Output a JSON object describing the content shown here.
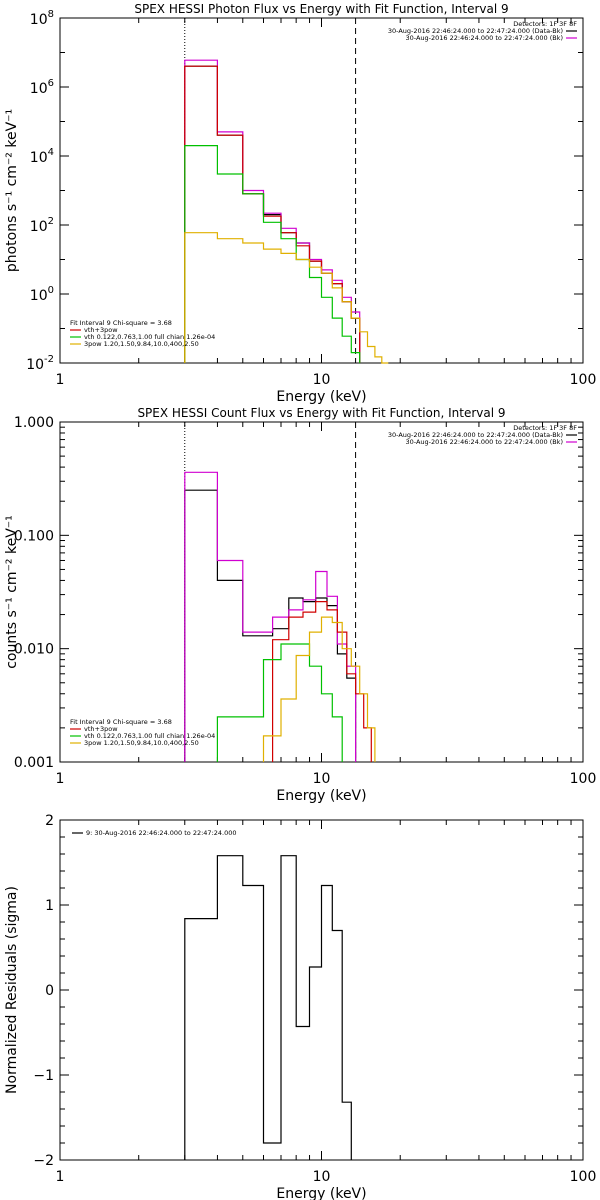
{
  "chart_data": [
    {
      "type": "line",
      "title": "SPEX HESSI Photon Flux vs Energy with Fit Function, Interval 9",
      "xlabel": "Energy (keV)",
      "ylabel": "photons s⁻¹ cm⁻² keV⁻¹",
      "xscale": "log",
      "yscale": "log",
      "xlim": [
        1,
        100
      ],
      "ylim": [
        0.01,
        100000000
      ],
      "x_ticks": [
        {
          "value": 1,
          "label": "1"
        },
        {
          "value": 10,
          "label": "10"
        },
        {
          "value": 100,
          "label": "100"
        }
      ],
      "y_ticks": [
        {
          "value": 0.01,
          "base": "10",
          "exp": "-2"
        },
        {
          "value": 1,
          "base": "10",
          "exp": "0"
        },
        {
          "value": 100,
          "base": "10",
          "exp": "2"
        },
        {
          "value": 10000,
          "base": "10",
          "exp": "4"
        },
        {
          "value": 1000000,
          "base": "10",
          "exp": "6"
        },
        {
          "value": 100000000,
          "base": "10",
          "exp": "8"
        }
      ],
      "vlines": [
        {
          "x": 3.0,
          "style": "dotted"
        },
        {
          "x": 13.5,
          "style": "dashed"
        }
      ],
      "legend_top_right": {
        "header": "Detectors: 1F 3F 8F",
        "entries": [
          {
            "text": "30-Aug-2016 22:46:24.000 to 22:47:24.000 (Data-Bk)",
            "color": "#000000"
          },
          {
            "text": "30-Aug-2016 22:46:24.000 to 22:47:24.000 (Bk)",
            "color": "#d000d0"
          }
        ]
      },
      "legend_bottom_left": {
        "header": "Fit Interval 9   Chi-square = 3.68",
        "entries": [
          {
            "text": "vth+3pow",
            "color": "#d00000"
          },
          {
            "text": "vth 0.122,0.763,1.00  full chian 1.26e-04",
            "color": "#00c000"
          },
          {
            "text": "3pow 1.20,1.50,9.84,10.0,400,2.50",
            "color": "#e0b000"
          }
        ]
      },
      "edges": [
        3.0,
        3.5,
        4.0,
        4.5,
        5.0,
        5.5,
        6.0,
        6.5,
        7.0,
        7.5,
        8.0,
        8.5,
        9.0,
        9.5,
        10.0,
        10.5,
        11.0,
        11.5,
        12.0,
        12.5,
        13.0,
        13.5,
        14.0,
        14.5,
        15.0,
        15.5,
        16.0,
        16.5,
        17.0,
        17.5,
        18.0
      ],
      "series": [
        {
          "name": "Data-Bk",
          "color": "#000000",
          "values": [
            4000000,
            4000000,
            40000,
            40000,
            800,
            800,
            200,
            200,
            60,
            60,
            30,
            30,
            9,
            9,
            4,
            4,
            2,
            2,
            0.6,
            0.6,
            0.2,
            0.2,
            null,
            null,
            null,
            null,
            null,
            null,
            null,
            null
          ]
        },
        {
          "name": "Bk",
          "color": "#d000d0",
          "values": [
            6000000,
            6000000,
            50000,
            50000,
            1000,
            1000,
            220,
            220,
            80,
            80,
            30,
            30,
            10,
            10,
            5,
            5,
            2.5,
            2.5,
            0.8,
            0.8,
            0.3,
            0.3,
            null,
            null,
            null,
            null,
            null,
            null,
            null,
            null
          ]
        },
        {
          "name": "vth+3pow",
          "color": "#d00000",
          "values": [
            4000000,
            4000000,
            40000,
            40000,
            800,
            800,
            180,
            180,
            60,
            60,
            25,
            25,
            9,
            9,
            4,
            4,
            2,
            2,
            0.6,
            0.6,
            0.2,
            0.2,
            null,
            null,
            null,
            null,
            null,
            null,
            null,
            null
          ]
        },
        {
          "name": "vth",
          "color": "#00c000",
          "values": [
            20000,
            20000,
            3000,
            3000,
            800,
            800,
            120,
            120,
            40,
            40,
            10,
            10,
            3,
            3,
            0.8,
            0.8,
            0.2,
            0.2,
            0.06,
            0.06,
            0.02,
            0.02,
            null,
            null,
            null,
            null,
            null,
            null,
            null,
            null
          ]
        },
        {
          "name": "3pow",
          "color": "#e0b000",
          "values": [
            60,
            60,
            40,
            40,
            30,
            30,
            20,
            20,
            15,
            15,
            10,
            10,
            6,
            6,
            4,
            4,
            1.5,
            1.5,
            0.6,
            0.6,
            0.2,
            0.2,
            0.08,
            0.08,
            0.03,
            0.03,
            0.015,
            0.015,
            0.01,
            0.01
          ]
        }
      ]
    },
    {
      "type": "line",
      "title": "SPEX HESSI Count Flux vs Energy with Fit Function, Interval 9",
      "xlabel": "Energy (keV)",
      "ylabel": "counts s⁻¹ cm⁻² keV⁻¹",
      "xscale": "log",
      "yscale": "log",
      "xlim": [
        1,
        100
      ],
      "ylim": [
        0.001,
        1
      ],
      "x_ticks": [
        {
          "value": 1,
          "label": "1"
        },
        {
          "value": 10,
          "label": "10"
        },
        {
          "value": 100,
          "label": "100"
        }
      ],
      "y_ticks": [
        {
          "value": 0.001,
          "label": "0.001"
        },
        {
          "value": 0.01,
          "label": "0.010"
        },
        {
          "value": 0.1,
          "label": "0.100"
        },
        {
          "value": 1,
          "label": "1.000"
        }
      ],
      "vlines": [
        {
          "x": 3.0,
          "style": "dotted"
        },
        {
          "x": 13.5,
          "style": "dashed"
        }
      ],
      "legend_top_right": {
        "header": "Detectors: 1F 3F 8F",
        "entries": [
          {
            "text": "30-Aug-2016 22:46:24.000 to 22:47:24.000 (Data-Bk)",
            "color": "#000000"
          },
          {
            "text": "30-Aug-2016 22:46:24.000 to 22:47:24.000 (Bk)",
            "color": "#d000d0"
          }
        ]
      },
      "legend_bottom_left": {
        "header": "Fit Interval 9   Chi-square = 3.68",
        "entries": [
          {
            "text": "vth+3pow",
            "color": "#d00000"
          },
          {
            "text": "vth 0.122,0.763,1.00  full chian 1.26e-04",
            "color": "#00c000"
          },
          {
            "text": "3pow 1.20,1.50,9.84,10.0,400,2.50",
            "color": "#e0b000"
          }
        ]
      },
      "edges": [
        3.0,
        4.0,
        5.0,
        6.0,
        6.5,
        7.0,
        7.5,
        8.0,
        8.5,
        9.0,
        9.5,
        10.0,
        10.5,
        11.0,
        11.5,
        12.0,
        12.5,
        13.0,
        13.5,
        14.0,
        14.5,
        15.0,
        15.5,
        16.0
      ],
      "series": [
        {
          "name": "Data-Bk",
          "color": "#000000",
          "values": [
            0.25,
            0.04,
            0.013,
            0.013,
            0.015,
            0.015,
            0.028,
            0.028,
            0.026,
            0.026,
            0.028,
            0.028,
            0.024,
            0.024,
            0.009,
            0.009,
            0.0055,
            0.0055,
            null,
            null,
            null,
            null,
            null
          ]
        },
        {
          "name": "Bk",
          "color": "#d000d0",
          "values": [
            0.36,
            0.06,
            0.014,
            0.014,
            0.019,
            0.019,
            0.022,
            0.022,
            0.027,
            0.027,
            0.048,
            0.048,
            0.029,
            0.029,
            0.011,
            0.011,
            0.007,
            0.007,
            null,
            null,
            null,
            null,
            null
          ]
        },
        {
          "name": "vth+3pow",
          "color": "#d00000",
          "values": [
            null,
            null,
            null,
            null,
            0.012,
            0.012,
            0.019,
            0.019,
            0.021,
            0.021,
            0.026,
            0.026,
            0.022,
            0.022,
            0.014,
            0.014,
            0.006,
            0.006,
            0.004,
            0.004,
            0.002,
            0.002,
            null
          ]
        },
        {
          "name": "vth",
          "color": "#00c000",
          "values": [
            null,
            0.0025,
            0.0025,
            0.008,
            0.008,
            0.011,
            0.011,
            0.011,
            0.011,
            0.007,
            0.007,
            0.004,
            0.004,
            0.0025,
            0.0025,
            null,
            null,
            null,
            null,
            null,
            null,
            null,
            null
          ]
        },
        {
          "name": "3pow",
          "color": "#e0b000",
          "values": [
            null,
            null,
            null,
            0.0017,
            0.0017,
            0.0036,
            0.0036,
            0.0087,
            0.0087,
            0.014,
            0.014,
            0.019,
            0.019,
            0.017,
            0.017,
            0.01,
            0.01,
            0.007,
            0.007,
            0.004,
            0.004,
            0.002,
            0.002
          ]
        }
      ]
    },
    {
      "type": "line",
      "title": "",
      "xlabel": "Energy (keV)",
      "ylabel": "Normalized Residuals (sigma)",
      "xscale": "log",
      "yscale": "linear",
      "xlim": [
        1,
        100
      ],
      "ylim": [
        -2,
        2
      ],
      "x_ticks": [
        {
          "value": 1,
          "label": "1"
        },
        {
          "value": 10,
          "label": "10"
        },
        {
          "value": 100,
          "label": "100"
        }
      ],
      "y_ticks": [
        {
          "value": -2,
          "label": "−2"
        },
        {
          "value": -1,
          "label": "−1"
        },
        {
          "value": 0,
          "label": "0"
        },
        {
          "value": 1,
          "label": "1"
        },
        {
          "value": 2,
          "label": "2"
        }
      ],
      "legend_top_left": {
        "entries": [
          {
            "text": "9: 30-Aug-2016 22:46:24.000 to 22:47:24.000",
            "color": "#000000"
          }
        ]
      },
      "edges": [
        3.0,
        3.5,
        4.0,
        4.5,
        5.0,
        5.5,
        6.0,
        6.5,
        7.0,
        7.5,
        8.0,
        8.5,
        9.0,
        9.5,
        10.0,
        10.5,
        11.0,
        11.5,
        12.0,
        12.5,
        13.0,
        13.5
      ],
      "series": [
        {
          "name": "residuals",
          "color": "#000000",
          "values": [
            0.84,
            0.84,
            1.58,
            1.58,
            1.23,
            1.23,
            -1.8,
            -1.8,
            1.58,
            1.58,
            -0.43,
            -0.43,
            0.27,
            0.27,
            1.23,
            1.23,
            0.7,
            0.7,
            -1.32,
            -1.32,
            null
          ]
        }
      ]
    }
  ]
}
